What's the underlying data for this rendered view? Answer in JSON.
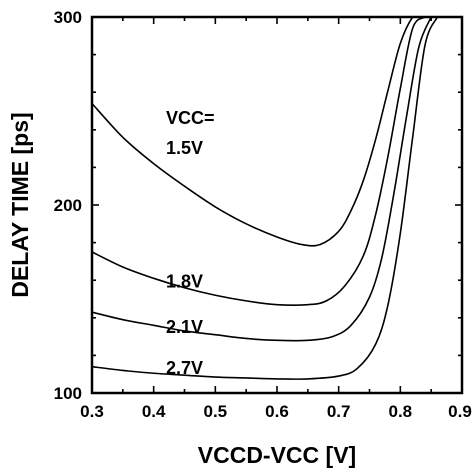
{
  "chart_data": {
    "type": "line",
    "xlabel": "VCCD-VCC [V]",
    "ylabel": "DELAY TIME [ps]",
    "xlim": [
      0.3,
      0.9
    ],
    "ylim": [
      100,
      300
    ],
    "xticks": [
      "0.3",
      "0.4",
      "0.5",
      "0.6",
      "0.7",
      "0.8",
      "0.9"
    ],
    "xtick_values": [
      0.3,
      0.4,
      0.5,
      0.6,
      0.7,
      0.8,
      0.9
    ],
    "yticks": [
      "100",
      "200",
      "300"
    ],
    "ytick_values": [
      100,
      200,
      300
    ],
    "grid": false,
    "annotations": [
      {
        "text": "VCC=",
        "x": 0.42,
        "y": 243
      },
      {
        "text": "1.5V",
        "x": 0.42,
        "y": 227
      },
      {
        "text": "1.8V",
        "x": 0.42,
        "y": 156
      },
      {
        "text": "2.1V",
        "x": 0.42,
        "y": 132
      },
      {
        "text": "2.7V",
        "x": 0.42,
        "y": 110
      }
    ],
    "series": [
      {
        "x": [
          0.3,
          0.35,
          0.4,
          0.45,
          0.5,
          0.55,
          0.6,
          0.64,
          0.67,
          0.7,
          0.72,
          0.74,
          0.76,
          0.78,
          0.8,
          0.82,
          0.83
        ],
        "y": [
          254,
          236,
          222,
          210,
          199,
          190,
          183,
          179,
          179,
          186,
          197,
          213,
          235,
          261,
          286,
          300,
          300
        ]
      },
      {
        "x": [
          0.3,
          0.35,
          0.4,
          0.45,
          0.5,
          0.55,
          0.6,
          0.65,
          0.68,
          0.71,
          0.74,
          0.76,
          0.78,
          0.8,
          0.82,
          0.84
        ],
        "y": [
          175,
          167,
          161,
          156,
          152,
          149,
          147,
          147,
          149,
          157,
          173,
          195,
          226,
          262,
          294,
          300
        ]
      },
      {
        "x": [
          0.3,
          0.35,
          0.4,
          0.45,
          0.5,
          0.55,
          0.6,
          0.65,
          0.69,
          0.72,
          0.75,
          0.77,
          0.79,
          0.81,
          0.83,
          0.85
        ],
        "y": [
          143,
          139,
          136,
          133,
          131,
          129,
          128,
          128,
          130,
          136,
          151,
          172,
          207,
          247,
          284,
          300
        ]
      },
      {
        "x": [
          0.3,
          0.35,
          0.4,
          0.45,
          0.5,
          0.55,
          0.6,
          0.65,
          0.7,
          0.73,
          0.76,
          0.78,
          0.8,
          0.82,
          0.84,
          0.86
        ],
        "y": [
          114,
          112,
          110.5,
          109.5,
          108.5,
          108,
          107.5,
          107.5,
          109,
          113,
          126,
          147,
          185,
          236,
          285,
          300
        ]
      }
    ]
  }
}
